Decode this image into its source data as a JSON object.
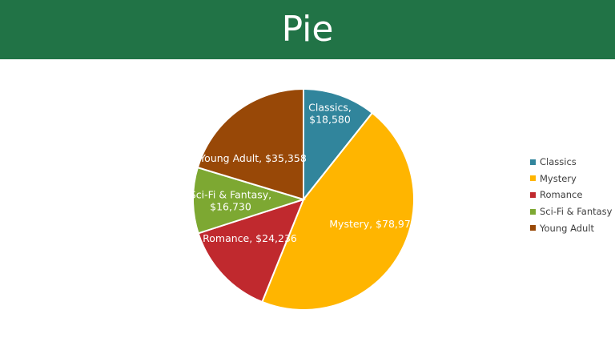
{
  "header": {
    "title": "Pie"
  },
  "chart_data": {
    "type": "pie",
    "title": "",
    "legend_position": "right",
    "slices": [
      {
        "name": "Classics",
        "value": 18580,
        "label_lines": [
          "Classics,",
          "$18,580"
        ],
        "color": "#31859C"
      },
      {
        "name": "Mystery",
        "value": 78970,
        "label_lines": [
          "Mystery, $78,970"
        ],
        "color": "#FFB500"
      },
      {
        "name": "Romance",
        "value": 24236,
        "label_lines": [
          "Romance, $24,236"
        ],
        "color": "#C0292E"
      },
      {
        "name": "Sci-Fi & Fantasy",
        "value": 16730,
        "label_lines": [
          "Sci-Fi & Fantasy,",
          "$16,730"
        ],
        "color": "#7DA832"
      },
      {
        "name": "Young Adult",
        "value": 35358,
        "label_lines": [
          "Young Adult, $35,358"
        ],
        "color": "#984807"
      }
    ]
  }
}
